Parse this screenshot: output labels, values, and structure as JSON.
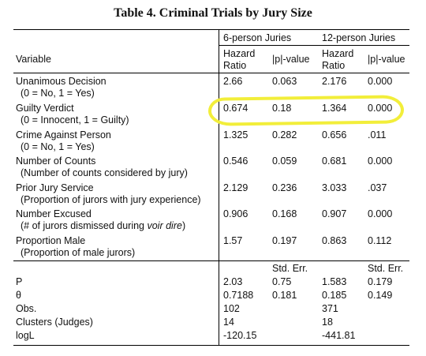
{
  "title": "Table 4. Criminal Trials by Jury Size",
  "group_headers": [
    "6-person Juries",
    "12-person Juries"
  ],
  "col_header": {
    "variable": "Variable",
    "hr_line1": "Hazard",
    "hr_line2": "Ratio",
    "pval": "|p|-value"
  },
  "rows": [
    {
      "label": "Unanimous Decision",
      "sub": "(0 = No, 1 = Yes)",
      "v": [
        "2.66",
        "0.063",
        "2.176",
        "0.000"
      ]
    },
    {
      "label": "Guilty Verdict",
      "sub": "(0 = Innocent, 1 = Guilty)",
      "v": [
        "0.674",
        "0.18",
        "1.364",
        "0.000"
      ]
    },
    {
      "label": "Crime Against Person",
      "sub": "(0 = No, 1 = Yes)",
      "v": [
        "1.325",
        "0.282",
        "0.656",
        ".011"
      ]
    },
    {
      "label": "Number of Counts",
      "sub": "(Number of counts considered by jury)",
      "v": [
        "0.546",
        "0.059",
        "0.681",
        "0.000"
      ]
    },
    {
      "label": "Prior Jury Service",
      "sub": "(Proportion of jurors with jury experience)",
      "v": [
        "2.129",
        "0.236",
        "3.033",
        ".037"
      ]
    },
    {
      "label": "Number Excused",
      "sub_pre": "(# of jurors dismissed during ",
      "sub_em": "voir dire",
      "sub_post": ")",
      "v": [
        "0.906",
        "0.168",
        "0.907",
        "0.000"
      ]
    },
    {
      "label": "Proportion Male",
      "sub": "(Proportion of male jurors)",
      "v": [
        "1.57",
        "0.197",
        "0.863",
        "0.112"
      ]
    }
  ],
  "stderr_header": "Std. Err.",
  "stats": [
    {
      "label": "P",
      "v": [
        "2.03",
        "0.75",
        "1.583",
        "0.179"
      ]
    },
    {
      "label": "θ",
      "v": [
        "0.7188",
        "0.181",
        "0.185",
        "0.149"
      ]
    },
    {
      "label": "Obs.",
      "v": [
        "102",
        "",
        "371",
        ""
      ]
    },
    {
      "label": "Clusters (Judges)",
      "v": [
        "14",
        "",
        "18",
        ""
      ]
    },
    {
      "label": "logL",
      "v": [
        "-120.15",
        "",
        "-441.81",
        ""
      ]
    }
  ],
  "highlight_color": "#f2ee3a"
}
